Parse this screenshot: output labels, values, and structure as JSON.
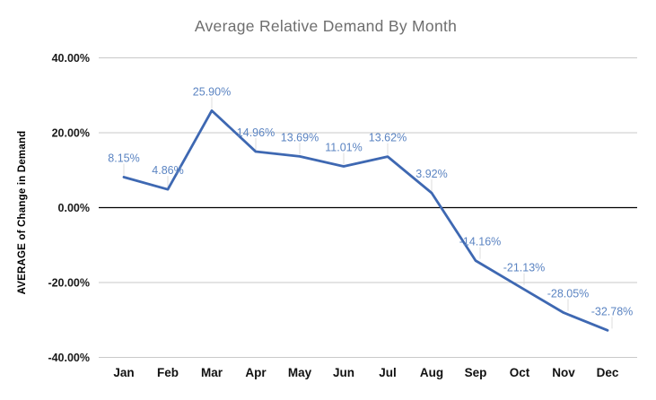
{
  "chart_data": {
    "type": "line",
    "title": "Average Relative Demand By Month",
    "xlabel": "",
    "ylabel": "AVERAGE of Change in Demand",
    "categories": [
      "Jan",
      "Feb",
      "Mar",
      "Apr",
      "May",
      "Jun",
      "Jul",
      "Aug",
      "Sep",
      "Oct",
      "Nov",
      "Dec"
    ],
    "series": [
      {
        "name": "AVERAGE of Change in Demand",
        "values": [
          8.15,
          4.86,
          25.9,
          14.96,
          13.69,
          11.01,
          13.62,
          3.92,
          -14.16,
          -21.13,
          -28.05,
          -32.78
        ],
        "data_labels": [
          "8.15%",
          "4.86%",
          "25.90%",
          "14.96%",
          "13.69%",
          "11.01%",
          "13.62%",
          "3.92%",
          "-14.16%",
          "-21.13%",
          "-28.05%",
          "-32.78%"
        ]
      }
    ],
    "y_ticks": [
      {
        "value": 40,
        "label": "40.00%"
      },
      {
        "value": 20,
        "label": "20.00%"
      },
      {
        "value": 0,
        "label": "0.00%"
      },
      {
        "value": -20,
        "label": "-20.00%"
      },
      {
        "value": -40,
        "label": "-40.00%"
      }
    ],
    "ylim": [
      -40,
      40
    ],
    "grid": true,
    "legend_position": "none",
    "colors": {
      "line": "#3E68B2",
      "data_label": "#5B84C2",
      "gridline": "#C9C9C9",
      "zero_axis": "#000000",
      "leader_line": "#DCDCDC",
      "title": "#6E6E6E",
      "tick_label": "#111111"
    }
  }
}
